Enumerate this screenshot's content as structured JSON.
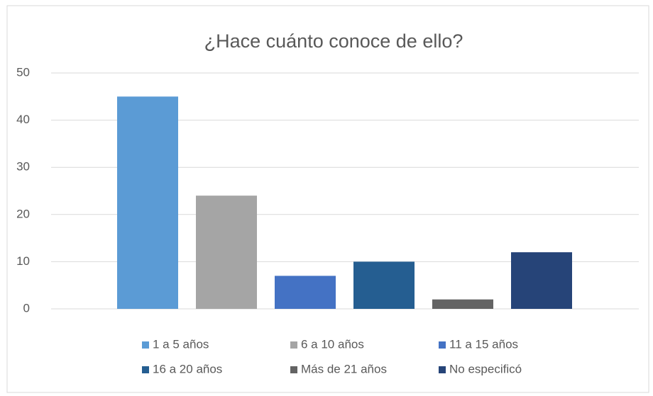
{
  "chart_data": {
    "type": "bar",
    "title": "¿Hace cuánto conoce de ello?",
    "series": [
      {
        "name": "1 a 5 años",
        "color": "#5b9bd5",
        "values": [
          45
        ]
      },
      {
        "name": "6 a 10 años",
        "color": "#a5a5a5",
        "values": [
          24
        ]
      },
      {
        "name": "11 a 15 años",
        "color": "#4472c4",
        "values": [
          7
        ]
      },
      {
        "name": "16 a 20 años",
        "color": "#255e91",
        "values": [
          10
        ]
      },
      {
        "name": "Más de 21 años",
        "color": "#636363",
        "values": [
          2
        ]
      },
      {
        "name": "No especificó",
        "color": "#264478",
        "values": [
          12
        ]
      }
    ],
    "ylim": [
      0,
      50
    ],
    "yticks": [
      0,
      10,
      20,
      30,
      40,
      50
    ],
    "grid": true,
    "legend": "bottom"
  }
}
